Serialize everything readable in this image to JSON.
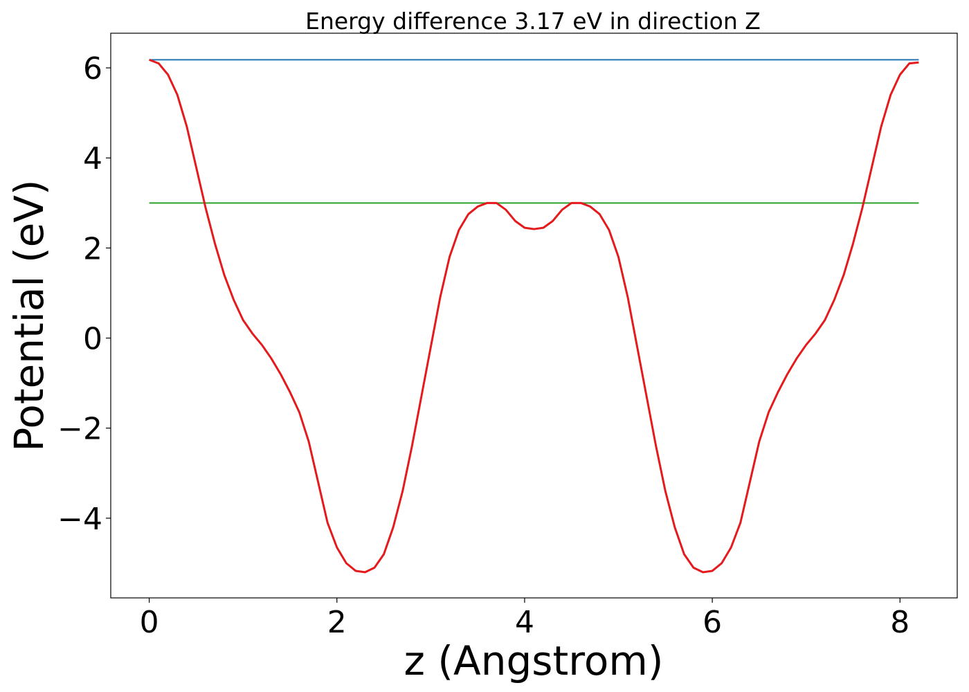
{
  "chart_data": {
    "type": "line",
    "title": "Energy difference 3.17 eV in direction Z",
    "x_label": "z (Angstrom)",
    "y_label": "Potential (eV)",
    "xlim": [
      -0.41,
      8.61
    ],
    "ylim": [
      -5.77,
      6.77
    ],
    "xticks": [
      0,
      2,
      4,
      6,
      8
    ],
    "yticks": [
      {
        "value": -4,
        "label": "−4"
      },
      {
        "value": -2,
        "label": "−2"
      },
      0,
      2,
      4,
      6
    ],
    "series": [
      {
        "color": "#1f77b4",
        "x": [
          0,
          8.2
        ],
        "values": [
          6.18,
          6.18
        ]
      },
      {
        "color": "#2ca02c",
        "x": [
          0,
          8.2
        ],
        "values": [
          3.0,
          3.0
        ]
      },
      {
        "color": "#e41a1c",
        "x": [
          0,
          0.1,
          0.2,
          0.3,
          0.4,
          0.5,
          0.6,
          0.7,
          0.8,
          0.9,
          1.0,
          1.1,
          1.2,
          1.3,
          1.4,
          1.5,
          1.6,
          1.7,
          1.8,
          1.9,
          2.0,
          2.1,
          2.2,
          2.3,
          2.4,
          2.5,
          2.6,
          2.7,
          2.8,
          2.9,
          3.0,
          3.1,
          3.2,
          3.3,
          3.4,
          3.5,
          3.6,
          3.7,
          3.8,
          3.9,
          4.0,
          4.1,
          4.2,
          4.3,
          4.4,
          4.5,
          4.6,
          4.7,
          4.8,
          4.9,
          5.0,
          5.1,
          5.2,
          5.3,
          5.4,
          5.5,
          5.6,
          5.7,
          5.8,
          5.9,
          6.0,
          6.1,
          6.2,
          6.3,
          6.4,
          6.5,
          6.6,
          6.7,
          6.8,
          6.9,
          7.0,
          7.1,
          7.2,
          7.3,
          7.4,
          7.5,
          7.6,
          7.7,
          7.8,
          7.9,
          8.0,
          8.1,
          8.2
        ],
        "values": [
          6.18,
          6.1,
          5.85,
          5.4,
          4.7,
          3.8,
          2.9,
          2.1,
          1.4,
          0.85,
          0.4,
          0.1,
          -0.15,
          -0.45,
          -0.8,
          -1.2,
          -1.65,
          -2.3,
          -3.2,
          -4.1,
          -4.65,
          -5.0,
          -5.17,
          -5.2,
          -5.1,
          -4.8,
          -4.2,
          -3.4,
          -2.4,
          -1.3,
          -0.2,
          0.9,
          1.8,
          2.4,
          2.75,
          2.92,
          3.0,
          3.0,
          2.85,
          2.6,
          2.45,
          2.42,
          2.45,
          2.6,
          2.85,
          3.0,
          3.0,
          2.92,
          2.75,
          2.4,
          1.8,
          0.9,
          -0.2,
          -1.3,
          -2.4,
          -3.4,
          -4.2,
          -4.8,
          -5.1,
          -5.2,
          -5.17,
          -5.0,
          -4.65,
          -4.1,
          -3.2,
          -2.3,
          -1.65,
          -1.2,
          -0.8,
          -0.45,
          -0.15,
          0.1,
          0.4,
          0.85,
          1.4,
          2.1,
          2.9,
          3.8,
          4.7,
          5.4,
          5.85,
          6.1,
          6.12
        ]
      }
    ]
  }
}
